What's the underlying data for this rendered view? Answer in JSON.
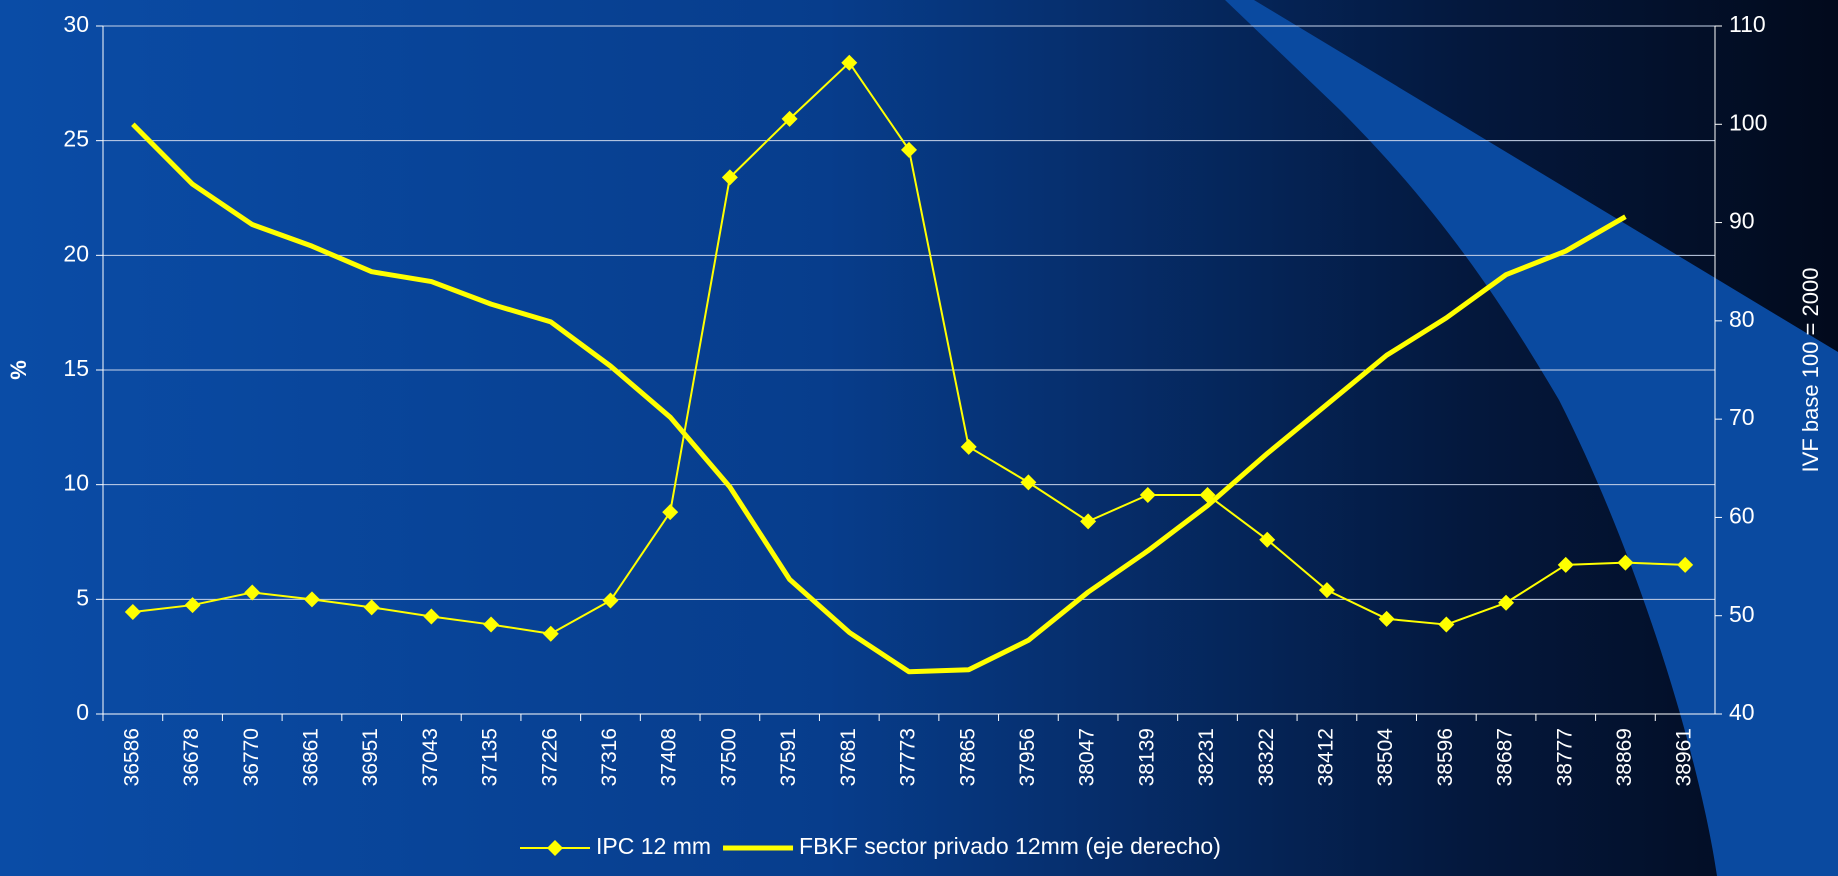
{
  "chart_data": {
    "type": "line",
    "y_label": "%",
    "y2_label": "IVF base 100 = 2000",
    "categories": [
      "36586",
      "36678",
      "36770",
      "36861",
      "36951",
      "37043",
      "37135",
      "37226",
      "37316",
      "37408",
      "37500",
      "37591",
      "37681",
      "37773",
      "37865",
      "37956",
      "38047",
      "38139",
      "38231",
      "38322",
      "38412",
      "38504",
      "38596",
      "38687",
      "38777",
      "38869",
      "38961"
    ],
    "series": [
      {
        "name": "IPC 12 mm",
        "color": "#ffff00",
        "marker": "diamond",
        "values": [
          4.45,
          4.75,
          5.3,
          5.0,
          4.65,
          4.25,
          3.9,
          3.5,
          4.95,
          8.8,
          23.4,
          25.95,
          28.4,
          24.6,
          11.65,
          10.1,
          8.4,
          9.55,
          9.55,
          7.6,
          5.4,
          4.15,
          3.9,
          4.85,
          6.5,
          6.6,
          6.5
        ]
      },
      {
        "name": "FBKF sector privado 12mm (eje derecho)",
        "color": "#ffff00",
        "axis": "y2",
        "values": [
          100.0,
          93.9,
          89.8,
          87.6,
          85.0,
          84.0,
          81.7,
          79.9,
          75.4,
          70.2,
          63.1,
          53.7,
          48.3,
          44.3,
          44.5,
          47.5,
          52.4,
          56.6,
          61.2,
          66.5,
          71.5,
          76.5,
          80.3,
          84.7,
          87.1,
          90.6,
          null
        ]
      }
    ],
    "ylim": [
      0,
      30
    ],
    "yticks": [
      0,
      5,
      10,
      15,
      20,
      25,
      30
    ],
    "y2lim": [
      40,
      110
    ],
    "y2ticks": [
      40,
      50,
      60,
      70,
      80,
      90,
      100,
      110
    ],
    "grid": true,
    "legend": "bottom"
  }
}
